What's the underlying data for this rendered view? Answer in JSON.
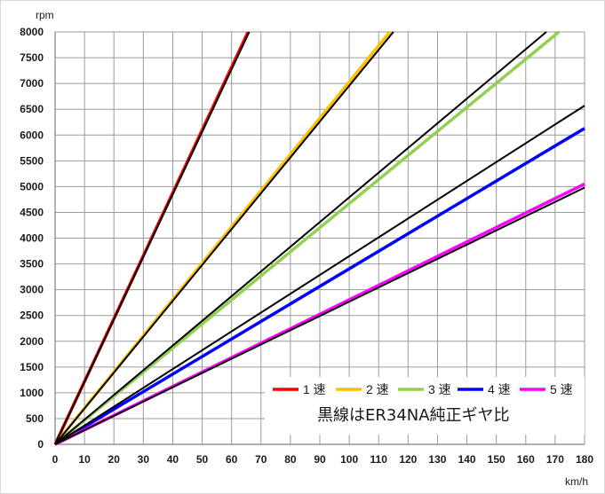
{
  "chart_data": {
    "type": "line",
    "x_unit_label": "km/h",
    "y_unit_label": "rpm",
    "xlim": [
      0,
      180
    ],
    "ylim": [
      0,
      8000
    ],
    "x_ticks": [
      "0",
      "10",
      "20",
      "30",
      "40",
      "50",
      "60",
      "70",
      "80",
      "90",
      "100",
      "110",
      "120",
      "130",
      "140",
      "150",
      "160",
      "170",
      "180"
    ],
    "y_ticks": [
      "0",
      "500",
      "1000",
      "1500",
      "2000",
      "2500",
      "3000",
      "3500",
      "4000",
      "4500",
      "5000",
      "5500",
      "6000",
      "6500",
      "7000",
      "7500",
      "8000"
    ],
    "grid": true,
    "legend_position": "bottom-right",
    "series": [
      {
        "name": "1 速",
        "color": "#ff0000",
        "x": [
          0,
          65.6
        ],
        "y": [
          0,
          8000
        ]
      },
      {
        "name": "2 速",
        "color": "#ffc000",
        "x": [
          0,
          113.8
        ],
        "y": [
          0,
          8000
        ]
      },
      {
        "name": "3 速",
        "color": "#92d050",
        "x": [
          0,
          171.3
        ],
        "y": [
          0,
          8000
        ]
      },
      {
        "name": "4 速",
        "color": "#0000ff",
        "x": [
          0,
          180
        ],
        "y": [
          0,
          6130
        ]
      },
      {
        "name": "5 速",
        "color": "#ff00ff",
        "x": [
          0,
          180
        ],
        "y": [
          0,
          5050
        ]
      }
    ],
    "reference_lines": {
      "color": "#000000",
      "lines": [
        {
          "x": [
            0,
            66.0
          ],
          "y": [
            0,
            8000
          ]
        },
        {
          "x": [
            0,
            115.0
          ],
          "y": [
            0,
            8000
          ]
        },
        {
          "x": [
            0,
            167.0
          ],
          "y": [
            0,
            8000
          ]
        },
        {
          "x": [
            0,
            180
          ],
          "y": [
            0,
            6570
          ]
        },
        {
          "x": [
            0,
            180
          ],
          "y": [
            0,
            4980
          ]
        }
      ]
    },
    "annotation": "黒線はER34NA純正ギヤ比"
  }
}
